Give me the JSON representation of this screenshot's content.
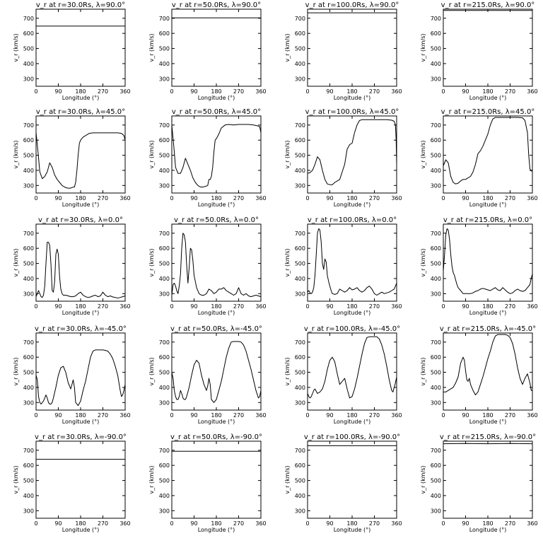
{
  "figure": {
    "xlabel": "Longitude (°)",
    "ylabel": "v_r (km/s)",
    "xticks": [
      0,
      90,
      180,
      270,
      360
    ],
    "yticks": [
      300,
      400,
      500,
      600,
      700
    ],
    "xlim": [
      0,
      360
    ],
    "ylim": [
      250,
      760
    ],
    "line_color": "#000000",
    "background": "#ffffff"
  },
  "chart_data": [
    {
      "type": "line",
      "title": "v_r at r=30.0Rs, λ=90.0°",
      "x": [
        0,
        360
      ],
      "y": [
        648,
        648
      ]
    },
    {
      "type": "line",
      "title": "v_r at r=50.0Rs, λ=90.0°",
      "x": [
        0,
        360
      ],
      "y": [
        703,
        703
      ]
    },
    {
      "type": "line",
      "title": "v_r at r=100.0Rs, λ=90.0°",
      "x": [
        0,
        360
      ],
      "y": [
        736,
        736
      ]
    },
    {
      "type": "line",
      "title": "v_r at r=215.0Rs, λ=90.0°",
      "x": [
        0,
        360
      ],
      "y": [
        752,
        752
      ]
    },
    {
      "type": "line",
      "title": "v_r at r=30.0Rs, λ=45.0°",
      "x": [
        0,
        8,
        15,
        25,
        35,
        45,
        55,
        65,
        75,
        85,
        95,
        105,
        115,
        125,
        135,
        145,
        150,
        155,
        160,
        165,
        170,
        175,
        180,
        190,
        200,
        215,
        230,
        250,
        270,
        290,
        310,
        330,
        345,
        355,
        360
      ],
      "y": [
        650,
        520,
        390,
        345,
        360,
        390,
        450,
        420,
        370,
        340,
        320,
        300,
        290,
        283,
        282,
        285,
        290,
        290,
        320,
        400,
        500,
        580,
        600,
        620,
        630,
        645,
        648,
        648,
        648,
        648,
        648,
        648,
        645,
        630,
        600
      ]
    },
    {
      "type": "line",
      "title": "v_r at r=50.0Rs, λ=45.0°",
      "x": [
        0,
        8,
        15,
        25,
        35,
        45,
        55,
        65,
        75,
        85,
        95,
        105,
        115,
        125,
        135,
        145,
        150,
        155,
        160,
        165,
        170,
        175,
        180,
        190,
        200,
        215,
        230,
        250,
        270,
        290,
        310,
        330,
        345,
        355,
        360
      ],
      "y": [
        700,
        560,
        420,
        380,
        380,
        420,
        480,
        440,
        400,
        350,
        320,
        300,
        290,
        290,
        293,
        300,
        340,
        340,
        360,
        420,
        520,
        600,
        610,
        640,
        680,
        700,
        704,
        700,
        704,
        704,
        704,
        700,
        695,
        690,
        650
      ]
    },
    {
      "type": "line",
      "title": "v_r at r=100.0Rs, λ=45.0°",
      "x": [
        0,
        10,
        20,
        30,
        40,
        50,
        60,
        70,
        80,
        90,
        100,
        110,
        120,
        130,
        140,
        150,
        160,
        170,
        180,
        190,
        200,
        210,
        220,
        230,
        240,
        260,
        280,
        300,
        320,
        340,
        350,
        355,
        358,
        360
      ],
      "y": [
        380,
        385,
        400,
        440,
        490,
        470,
        400,
        340,
        310,
        305,
        305,
        320,
        330,
        340,
        390,
        440,
        540,
        570,
        580,
        650,
        700,
        730,
        735,
        735,
        735,
        735,
        735,
        735,
        735,
        732,
        725,
        700,
        600,
        440
      ]
    },
    {
      "type": "line",
      "title": "v_r at r=215.0Rs, λ=45.0°",
      "x": [
        0,
        10,
        20,
        30,
        40,
        50,
        60,
        70,
        80,
        90,
        100,
        110,
        120,
        130,
        140,
        150,
        160,
        170,
        180,
        190,
        200,
        210,
        220,
        230,
        240,
        260,
        280,
        300,
        320,
        330,
        340,
        345,
        350,
        355,
        360
      ],
      "y": [
        430,
        470,
        450,
        360,
        320,
        310,
        315,
        330,
        340,
        340,
        350,
        360,
        390,
        440,
        510,
        530,
        560,
        600,
        640,
        700,
        740,
        750,
        750,
        750,
        750,
        750,
        750,
        750,
        748,
        730,
        650,
        500,
        410,
        395,
        400
      ]
    },
    {
      "type": "line",
      "title": "v_r at r=30.0Rs, λ=0.0°",
      "x": [
        0,
        5,
        10,
        15,
        20,
        25,
        30,
        35,
        40,
        45,
        50,
        55,
        60,
        65,
        70,
        75,
        80,
        85,
        90,
        95,
        100,
        105,
        110,
        120,
        130,
        140,
        150,
        160,
        170,
        180,
        190,
        200,
        210,
        220,
        230,
        240,
        250,
        260,
        270,
        280,
        290,
        300,
        310,
        320,
        330,
        340,
        350,
        360
      ],
      "y": [
        280,
        300,
        320,
        300,
        280,
        275,
        290,
        350,
        500,
        640,
        640,
        620,
        500,
        320,
        310,
        380,
        560,
        595,
        560,
        410,
        330,
        300,
        290,
        290,
        285,
        280,
        280,
        285,
        300,
        310,
        290,
        280,
        275,
        278,
        285,
        290,
        280,
        285,
        310,
        290,
        280,
        285,
        278,
        275,
        270,
        275,
        280,
        285
      ]
    },
    {
      "type": "line",
      "title": "v_r at r=50.0Rs, λ=0.0°",
      "x": [
        0,
        5,
        10,
        15,
        20,
        25,
        30,
        35,
        40,
        45,
        50,
        55,
        60,
        65,
        70,
        75,
        80,
        85,
        90,
        95,
        100,
        105,
        110,
        120,
        130,
        140,
        150,
        160,
        170,
        180,
        190,
        200,
        210,
        220,
        230,
        240,
        250,
        260,
        270,
        280,
        290,
        300,
        310,
        320,
        330,
        340,
        350,
        360
      ],
      "y": [
        290,
        360,
        370,
        350,
        320,
        300,
        350,
        430,
        600,
        700,
        690,
        640,
        490,
        370,
        470,
        600,
        590,
        520,
        420,
        380,
        340,
        320,
        300,
        290,
        290,
        300,
        330,
        320,
        300,
        310,
        330,
        330,
        340,
        320,
        310,
        300,
        290,
        300,
        340,
        300,
        290,
        300,
        285,
        280,
        285,
        290,
        285,
        280
      ]
    },
    {
      "type": "line",
      "title": "v_r at r=100.0Rs, λ=0.0°",
      "x": [
        0,
        5,
        10,
        15,
        20,
        25,
        30,
        35,
        40,
        45,
        50,
        55,
        60,
        65,
        70,
        75,
        80,
        85,
        90,
        95,
        100,
        110,
        120,
        130,
        140,
        150,
        160,
        170,
        180,
        190,
        200,
        210,
        220,
        230,
        240,
        250,
        260,
        270,
        280,
        290,
        300,
        310,
        320,
        330,
        340,
        350,
        355,
        360
      ],
      "y": [
        310,
        320,
        305,
        300,
        310,
        340,
        420,
        560,
        700,
        730,
        720,
        640,
        500,
        460,
        530,
        510,
        420,
        380,
        350,
        320,
        300,
        295,
        300,
        330,
        320,
        310,
        320,
        340,
        325,
        330,
        340,
        320,
        310,
        320,
        340,
        350,
        330,
        300,
        290,
        300,
        310,
        300,
        305,
        310,
        320,
        330,
        350,
        370
      ]
    },
    {
      "type": "line",
      "title": "v_r at r=215.0Rs, λ=0.0°",
      "x": [
        0,
        5,
        10,
        15,
        20,
        25,
        30,
        35,
        40,
        45,
        50,
        55,
        60,
        65,
        70,
        75,
        80,
        90,
        100,
        110,
        120,
        130,
        140,
        150,
        160,
        170,
        180,
        190,
        200,
        210,
        220,
        230,
        240,
        250,
        260,
        270,
        280,
        290,
        300,
        310,
        320,
        330,
        340,
        350,
        355,
        360
      ],
      "y": [
        450,
        560,
        690,
        730,
        720,
        660,
        560,
        480,
        440,
        420,
        390,
        360,
        340,
        330,
        320,
        310,
        300,
        300,
        300,
        300,
        305,
        315,
        320,
        330,
        335,
        330,
        325,
        320,
        330,
        340,
        325,
        320,
        340,
        325,
        310,
        300,
        305,
        320,
        330,
        320,
        315,
        320,
        340,
        360,
        400,
        430
      ]
    },
    {
      "type": "line",
      "title": "v_r at r=30.0Rs, λ=-45.0°",
      "x": [
        0,
        5,
        10,
        15,
        20,
        25,
        30,
        35,
        40,
        45,
        50,
        55,
        60,
        65,
        70,
        80,
        90,
        100,
        110,
        120,
        130,
        140,
        145,
        150,
        155,
        160,
        170,
        180,
        190,
        200,
        210,
        220,
        230,
        240,
        250,
        260,
        270,
        280,
        290,
        300,
        310,
        320,
        330,
        340,
        345,
        350,
        355,
        360
      ],
      "y": [
        480,
        450,
        340,
        300,
        290,
        300,
        310,
        330,
        350,
        330,
        300,
        290,
        290,
        300,
        330,
        400,
        480,
        530,
        540,
        500,
        430,
        390,
        420,
        450,
        400,
        300,
        280,
        310,
        380,
        440,
        520,
        600,
        640,
        648,
        648,
        648,
        648,
        645,
        640,
        620,
        590,
        540,
        480,
        380,
        340,
        350,
        380,
        420
      ]
    },
    {
      "type": "line",
      "title": "v_r at r=50.0Rs, λ=-45.0°",
      "x": [
        0,
        5,
        10,
        15,
        20,
        25,
        30,
        35,
        40,
        45,
        50,
        55,
        60,
        70,
        80,
        90,
        100,
        110,
        120,
        130,
        140,
        145,
        150,
        155,
        160,
        170,
        180,
        190,
        200,
        210,
        220,
        230,
        240,
        250,
        260,
        270,
        280,
        290,
        300,
        310,
        320,
        330,
        340,
        350,
        355,
        360
      ],
      "y": [
        500,
        460,
        380,
        340,
        320,
        320,
        340,
        380,
        360,
        330,
        320,
        320,
        340,
        400,
        480,
        550,
        580,
        560,
        480,
        420,
        380,
        410,
        460,
        420,
        320,
        300,
        320,
        380,
        440,
        520,
        600,
        660,
        700,
        704,
        704,
        704,
        700,
        680,
        640,
        580,
        520,
        450,
        380,
        330,
        340,
        380
      ]
    },
    {
      "type": "line",
      "title": "v_r at r=100.0Rs, λ=-45.0°",
      "x": [
        0,
        5,
        10,
        15,
        20,
        25,
        30,
        40,
        50,
        60,
        70,
        80,
        90,
        100,
        110,
        120,
        130,
        140,
        150,
        160,
        170,
        180,
        190,
        200,
        210,
        220,
        230,
        240,
        250,
        260,
        270,
        280,
        290,
        300,
        310,
        320,
        330,
        340,
        345,
        350,
        355,
        360
      ],
      "y": [
        360,
        340,
        330,
        340,
        360,
        380,
        390,
        360,
        370,
        390,
        440,
        520,
        580,
        600,
        570,
        490,
        420,
        440,
        460,
        390,
        330,
        340,
        390,
        460,
        540,
        620,
        690,
        730,
        735,
        735,
        735,
        735,
        720,
        680,
        620,
        540,
        450,
        380,
        370,
        400,
        430,
        470
      ]
    },
    {
      "type": "line",
      "title": "v_r at r=215.0Rs, λ=-45.0°",
      "x": [
        0,
        10,
        20,
        30,
        40,
        50,
        60,
        70,
        80,
        85,
        90,
        95,
        100,
        105,
        110,
        120,
        130,
        140,
        150,
        160,
        170,
        180,
        190,
        200,
        210,
        220,
        230,
        240,
        250,
        260,
        270,
        280,
        290,
        300,
        310,
        320,
        330,
        340,
        350,
        355,
        360
      ],
      "y": [
        370,
        370,
        380,
        390,
        400,
        430,
        470,
        560,
        600,
        580,
        510,
        450,
        440,
        460,
        420,
        380,
        350,
        370,
        420,
        470,
        530,
        590,
        640,
        700,
        740,
        750,
        750,
        750,
        750,
        745,
        730,
        690,
        620,
        530,
        460,
        420,
        460,
        490,
        430,
        380,
        380
      ]
    },
    {
      "type": "line",
      "title": "v_r at r=30.0Rs, λ=-90.0°",
      "x": [
        0,
        360
      ],
      "y": [
        640,
        640
      ]
    },
    {
      "type": "line",
      "title": "v_r at r=50.0Rs, λ=-90.0°",
      "x": [
        0,
        360
      ],
      "y": [
        693,
        693
      ]
    },
    {
      "type": "line",
      "title": "v_r at r=100.0Rs, λ=-90.0°",
      "x": [
        0,
        360
      ],
      "y": [
        730,
        730
      ]
    },
    {
      "type": "line",
      "title": "v_r at r=215.0Rs, λ=-90.0°",
      "x": [
        0,
        90,
        180,
        270,
        360
      ],
      "y": [
        743,
        745,
        743,
        745,
        743
      ]
    }
  ]
}
